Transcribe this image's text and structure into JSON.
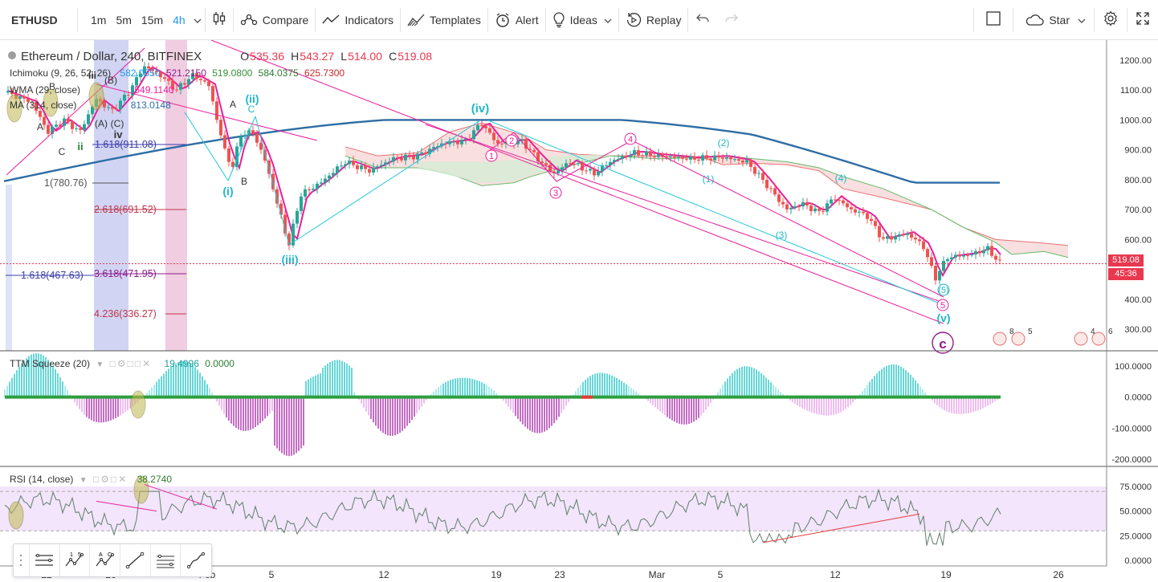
{
  "toolbar": {
    "symbol": "ETHUSD",
    "intervals": [
      "1m",
      "5m",
      "15m",
      "4h"
    ],
    "active_interval": "4h",
    "compare": "Compare",
    "indicators": "Indicators",
    "templates": "Templates",
    "alert": "Alert",
    "ideas": "Ideas",
    "replay": "Replay",
    "star": "Star"
  },
  "legend": {
    "title": "Ethereum / Dollar, 240, BITFINEX",
    "o_label": "O",
    "o": "535.36",
    "h_label": "H",
    "h": "543.27",
    "l_label": "L",
    "l": "514.00",
    "c_label": "C",
    "c": "519.08",
    "ichimoku": "Ichimoku (9, 26, 52, 26)",
    "ichi_vals": [
      "582.0550",
      "521.2150",
      "519.0800",
      "584.0375",
      "625.7300"
    ],
    "wma": "WMA (29, close)",
    "wma_val": "549.1140",
    "ma": "MA (314, close)",
    "ma_val": "813.0148"
  },
  "price_axis": [
    "1200.00",
    "1100.00",
    "1000.00",
    "900.00",
    "800.00",
    "700.00",
    "600.00",
    "500.00",
    "400.00",
    "300.00"
  ],
  "last_price": "519.08",
  "countdown": "45:36",
  "ttm": {
    "label": "TTM Squeeze (20)",
    "val1": "19.4996",
    "val2": "0.0000",
    "axis": [
      "100.0000",
      "0.0000",
      "-100.0000",
      "-200.0000"
    ]
  },
  "rsi": {
    "label": "RSI (14, close)",
    "val": "38.2740",
    "axis": [
      "75.0000",
      "50.0000",
      "25.0000",
      "0.0000"
    ]
  },
  "time_axis": [
    "22",
    "26",
    "Feb",
    "5",
    "12",
    "19",
    "23",
    "Mar",
    "5",
    "12",
    "19",
    "26"
  ],
  "fib_labels": [
    "1.618(911.08)",
    "1(780.76)",
    "2.618(691.52)",
    "1.618(467.63)",
    "3.618(471.95)",
    "4.236(336.27)"
  ],
  "wave_labels": [
    "(iv)",
    "(ii)",
    "(i)",
    "(iii)",
    "(v)",
    "iii",
    "iv",
    "ii",
    "A",
    "B",
    "C",
    "(A)",
    "(C)",
    "(B)",
    "(1)",
    "(2)",
    "(3)",
    "(4)",
    "(5)",
    "1",
    "2",
    "3",
    "4",
    "5",
    "c"
  ],
  "event_badges": [
    "8",
    "5",
    "4",
    "6"
  ],
  "colors": {
    "up": "#26a69a",
    "down": "#ef5350",
    "wma": "#e91e9c",
    "ma": "#2e6da4",
    "wave": "#20b8c8",
    "purple": "#8e1a8e",
    "price_line": "#e8384f",
    "rsi_band": "#f3e5fb"
  }
}
